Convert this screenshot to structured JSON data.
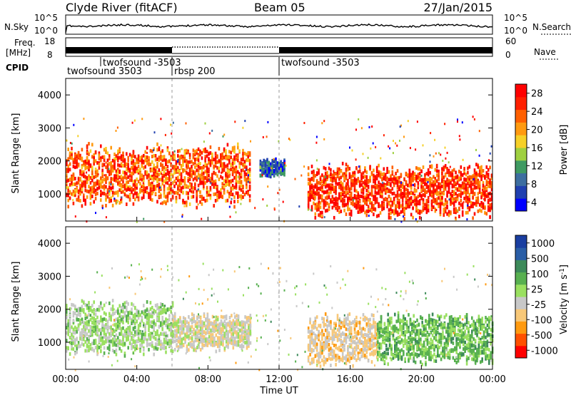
{
  "header": {
    "station": "Clyde River (fitACF)",
    "beam": "Beam 05",
    "date": "27/Jan/2015"
  },
  "noise_panel": {
    "left_label": "N.Sky",
    "right_label": "N.Search",
    "left_ticks": [
      "10^5",
      "10^0"
    ],
    "right_ticks": [
      "10^5",
      "10^0"
    ]
  },
  "freq_panel": {
    "left_label_1": "Freq.",
    "left_label_2": "[MHz]",
    "right_label": "Nave",
    "left_ticks": [
      "18",
      "8"
    ],
    "right_ticks": [
      "60",
      "0"
    ],
    "freq_mhz": 10.6,
    "nave_gap_hours": [
      6,
      12
    ]
  },
  "cpid": {
    "label": "CPID",
    "segments": [
      {
        "text": "twofsound 3503",
        "start_hour": 0,
        "row": 2
      },
      {
        "text": "twofsound -3503",
        "start_hour": 2,
        "row": 1
      },
      {
        "text": "rbsp 200",
        "start_hour": 6,
        "row": 2
      },
      {
        "text": "twofsound -3503",
        "start_hour": 12,
        "row": 1
      }
    ]
  },
  "chart_data": [
    {
      "type": "heatmap",
      "title": "",
      "xlabel": "Time UT",
      "ylabel": "Slant Range [km]",
      "xlim": [
        0,
        24
      ],
      "ylim": [
        180,
        4500
      ],
      "y_ticks": [
        "4000",
        "3000",
        "2000",
        "1000"
      ],
      "colorbar_label": "Power [dB]",
      "colorbar_ticks": [
        "28",
        "24",
        "20",
        "16",
        "12",
        "8",
        "4"
      ],
      "colorbar_range": [
        0,
        31
      ],
      "colors": [
        "#0000ff",
        "#2040b0",
        "#3d6ea0",
        "#3f9a62",
        "#9fd040",
        "#f6d028",
        "#ff9a10",
        "#ff6000",
        "#ff2000",
        "#ff0000"
      ],
      "bands": [
        {
          "start_hour": 0.0,
          "end_hour": 10.4,
          "range_km": [
            700,
            2500
          ],
          "level": 24
        },
        {
          "start_hour": 13.6,
          "end_hour": 24.0,
          "range_km": [
            350,
            1900
          ],
          "level": 26
        },
        {
          "start_hour": 10.9,
          "end_hour": 12.3,
          "range_km": [
            1600,
            2100
          ],
          "level": 6
        }
      ]
    },
    {
      "type": "heatmap",
      "title": "",
      "xlabel": "Time UT",
      "ylabel": "Slant Range [km]",
      "xlim": [
        0,
        24
      ],
      "ylim": [
        180,
        4500
      ],
      "y_ticks": [
        "4000",
        "3000",
        "2000",
        "1000"
      ],
      "colorbar_label": "Velocity [m s^-1]",
      "colorbar_ticks": [
        "1000",
        "500",
        "100",
        "25",
        "-25",
        "-100",
        "-500",
        "-1000"
      ],
      "colorbar_range": [
        -1200,
        1200
      ],
      "colors": [
        "#ff0000",
        "#ff5000",
        "#ff9a10",
        "#f8c878",
        "#c8c8c8",
        "#9ae060",
        "#58b050",
        "#3d8a5a",
        "#2a5ea6",
        "#1a3ea0"
      ],
      "bands": [
        {
          "start_hour": 0.0,
          "end_hour": 6.0,
          "range_km": [
            700,
            2300
          ],
          "level": 80
        },
        {
          "start_hour": 6.0,
          "end_hour": 10.4,
          "range_km": [
            800,
            1900
          ],
          "level": -150
        },
        {
          "start_hour": 13.6,
          "end_hour": 17.5,
          "range_km": [
            350,
            1900
          ],
          "level": -300
        },
        {
          "start_hour": 17.5,
          "end_hour": 24.0,
          "range_km": [
            400,
            1900
          ],
          "level": 300
        }
      ]
    }
  ],
  "x_axis": {
    "ticks": [
      "00:00",
      "04:00",
      "08:00",
      "12:00",
      "16:00",
      "20:00",
      "00:00"
    ],
    "label": "Time UT"
  },
  "colorbars": {
    "power_label": "Power [dB]",
    "velocity_label_main": "Velocity [m s",
    "velocity_label_sup": "-1",
    "velocity_label_end": "]"
  }
}
